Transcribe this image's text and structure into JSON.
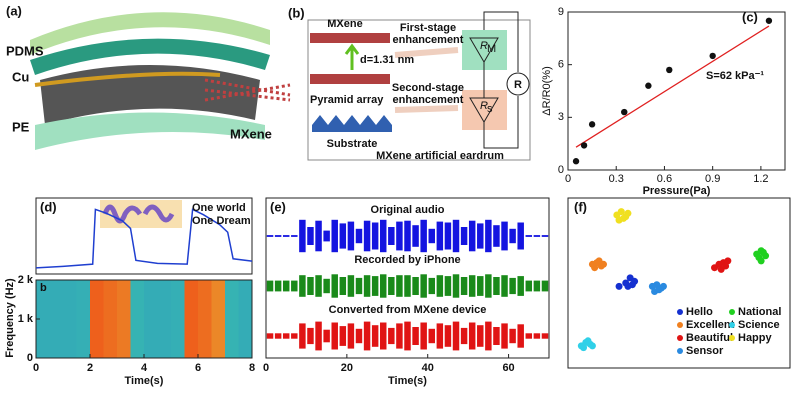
{
  "panels": {
    "a": {
      "label": "(a)",
      "texts": [
        "PDMS",
        "Cu",
        "PE",
        "MXene"
      ]
    },
    "b": {
      "label": "(b)",
      "mxene": "MXene",
      "spacing": "d=1.31 nm",
      "pyramid": "Pyramid array",
      "substrate": "Substrate",
      "first": [
        "First-stage",
        "enhancement"
      ],
      "second": [
        "Second-stage",
        "enhancement"
      ],
      "rm": "R",
      "rm_sub": "M",
      "rs": "R",
      "rs_sub": "s",
      "r": "R",
      "caption": "MXene artificial eardrum"
    }
  },
  "chart_data": [
    {
      "type": "scatter",
      "panel": "(c)",
      "xlabel": "Pressure(Pa)",
      "ylabel": "ΔR/R0(%)",
      "annotation": "S=62 kPa⁻¹",
      "xlim": [
        0,
        1.35
      ],
      "xticks": [
        0,
        0.3,
        0.6,
        0.9,
        1.2
      ],
      "ylim": [
        0,
        9
      ],
      "yticks": [
        0,
        3,
        6,
        9
      ],
      "series": [
        {
          "x": [
            0.05,
            0.1,
            0.15,
            0.35,
            0.5,
            0.63,
            0.9,
            1.25
          ],
          "values": [
            0.5,
            1.4,
            2.6,
            3.3,
            4.8,
            5.7,
            6.5,
            8.5
          ],
          "color": "#111111"
        }
      ],
      "fit": {
        "x": [
          0.05,
          1.25
        ],
        "values": [
          1.3,
          8.2
        ],
        "color": "#e02020"
      }
    },
    {
      "type": "signal-spectrogram",
      "panel": "(d)",
      "annotation": [
        "One world",
        "One Dream"
      ],
      "xlabel": "Time(s)",
      "ylabel": "Frequency (Hz)",
      "sublabel": "b",
      "xlim": [
        0,
        8
      ],
      "xticks": [
        0,
        2,
        4,
        6,
        8
      ],
      "signal": {
        "x": [
          0,
          1,
          2.1,
          2.2,
          2.6,
          3.2,
          3.5,
          3.7,
          4.5,
          5.6,
          5.8,
          6.2,
          6.8,
          7.1,
          7.3,
          8
        ],
        "values": [
          0.08,
          0.1,
          0.13,
          0.85,
          0.8,
          0.7,
          0.6,
          0.18,
          0.14,
          0.13,
          0.85,
          0.78,
          0.65,
          0.55,
          0.2,
          0.17
        ],
        "color": "#1f3fd0",
        "ylim": [
          0,
          1
        ]
      },
      "ylim": [
        0,
        2000
      ],
      "yticks": [
        {
          "value": 0,
          "label": "0"
        },
        {
          "value": 1000,
          "label": "1 k"
        },
        {
          "value": 2000,
          "label": "2 k"
        }
      ],
      "spectrogram": {
        "x": [
          0.25,
          0.75,
          1.25,
          1.75,
          2.25,
          2.75,
          3.25,
          3.75,
          4.25,
          4.75,
          5.25,
          5.75,
          6.25,
          6.75,
          7.25,
          7.75
        ],
        "values": [
          0.3,
          0.3,
          0.3,
          0.32,
          0.9,
          0.85,
          0.8,
          0.35,
          0.3,
          0.3,
          0.32,
          0.9,
          0.85,
          0.75,
          0.35,
          0.3
        ]
      }
    },
    {
      "type": "waveforms",
      "panel": "(e)",
      "xlabel": "Time(s)",
      "xlim": [
        0,
        70
      ],
      "xticks": [
        0,
        20,
        40,
        60
      ],
      "x": [
        1,
        3,
        5,
        7,
        9,
        11,
        13,
        15,
        17,
        19,
        21,
        23,
        25,
        27,
        29,
        31,
        33,
        35,
        37,
        39,
        41,
        43,
        45,
        47,
        49,
        51,
        53,
        55,
        57,
        59,
        61,
        63,
        65,
        67,
        69
      ],
      "series": [
        {
          "name": "Original audio",
          "color": "#1414e0",
          "values": [
            0.05,
            0.05,
            0.05,
            0.05,
            0.9,
            0.5,
            0.85,
            0.3,
            0.9,
            0.7,
            0.8,
            0.4,
            0.85,
            0.75,
            0.9,
            0.5,
            0.8,
            0.85,
            0.6,
            0.9,
            0.4,
            0.8,
            0.75,
            0.9,
            0.5,
            0.85,
            0.7,
            0.9,
            0.6,
            0.8,
            0.4,
            0.75,
            0.05,
            0.05,
            0.05
          ]
        },
        {
          "name": "Recorded by iPhone",
          "color": "#1a8a1a",
          "values": [
            0.3,
            0.3,
            0.3,
            0.3,
            0.6,
            0.5,
            0.6,
            0.4,
            0.65,
            0.5,
            0.6,
            0.45,
            0.6,
            0.55,
            0.65,
            0.5,
            0.6,
            0.6,
            0.5,
            0.65,
            0.45,
            0.6,
            0.55,
            0.65,
            0.5,
            0.6,
            0.55,
            0.65,
            0.5,
            0.6,
            0.45,
            0.55,
            0.3,
            0.3,
            0.3
          ]
        },
        {
          "name": "Converted from MXene device",
          "color": "#e01414",
          "values": [
            0.15,
            0.15,
            0.15,
            0.15,
            0.7,
            0.45,
            0.8,
            0.35,
            0.75,
            0.55,
            0.7,
            0.4,
            0.8,
            0.6,
            0.75,
            0.45,
            0.7,
            0.8,
            0.5,
            0.75,
            0.4,
            0.7,
            0.6,
            0.8,
            0.45,
            0.75,
            0.6,
            0.8,
            0.5,
            0.7,
            0.4,
            0.65,
            0.15,
            0.15,
            0.15
          ]
        }
      ]
    },
    {
      "type": "clusters",
      "panel": "(f)",
      "xlim": [
        0,
        10
      ],
      "ylim": [
        0,
        10
      ],
      "series": [
        {
          "name": "Hello",
          "color": "#1530d0",
          "x": [
            2.6,
            2.8,
            3.0,
            2.7,
            2.9,
            2.3
          ],
          "values": [
            5.0,
            5.3,
            5.1,
            4.8,
            4.9,
            4.8
          ]
        },
        {
          "name": "Excellent",
          "color": "#f08020",
          "x": [
            1.1,
            1.3,
            1.5,
            1.2,
            1.4,
            1.6
          ],
          "values": [
            6.1,
            6.2,
            6.0,
            5.9,
            6.3,
            6.1
          ]
        },
        {
          "name": "Beautiful",
          "color": "#e01414",
          "x": [
            6.6,
            6.8,
            7.0,
            7.2,
            6.9,
            7.1
          ],
          "values": [
            5.9,
            6.1,
            6.2,
            6.3,
            5.8,
            6.0
          ]
        },
        {
          "name": "Sensor",
          "color": "#2a8ae0",
          "x": [
            3.8,
            4.0,
            4.2,
            3.9,
            4.1,
            4.3
          ],
          "values": [
            4.8,
            4.9,
            4.7,
            4.5,
            4.6,
            4.8
          ]
        },
        {
          "name": "National",
          "color": "#20d020",
          "x": [
            8.5,
            8.7,
            8.9,
            8.6,
            8.8,
            8.7
          ],
          "values": [
            6.7,
            6.9,
            6.6,
            6.5,
            6.8,
            6.3
          ]
        },
        {
          "name": "Science",
          "color": "#30d0e8",
          "x": [
            0.6,
            0.8,
            1.0,
            0.7,
            0.9,
            1.1
          ],
          "values": [
            1.3,
            1.5,
            1.4,
            1.2,
            1.6,
            1.3
          ]
        },
        {
          "name": "Happy",
          "color": "#f0e020",
          "x": [
            2.2,
            2.4,
            2.6,
            2.3,
            2.5,
            2.7
          ],
          "values": [
            9.0,
            9.2,
            8.9,
            8.7,
            8.8,
            9.1
          ]
        }
      ]
    }
  ]
}
